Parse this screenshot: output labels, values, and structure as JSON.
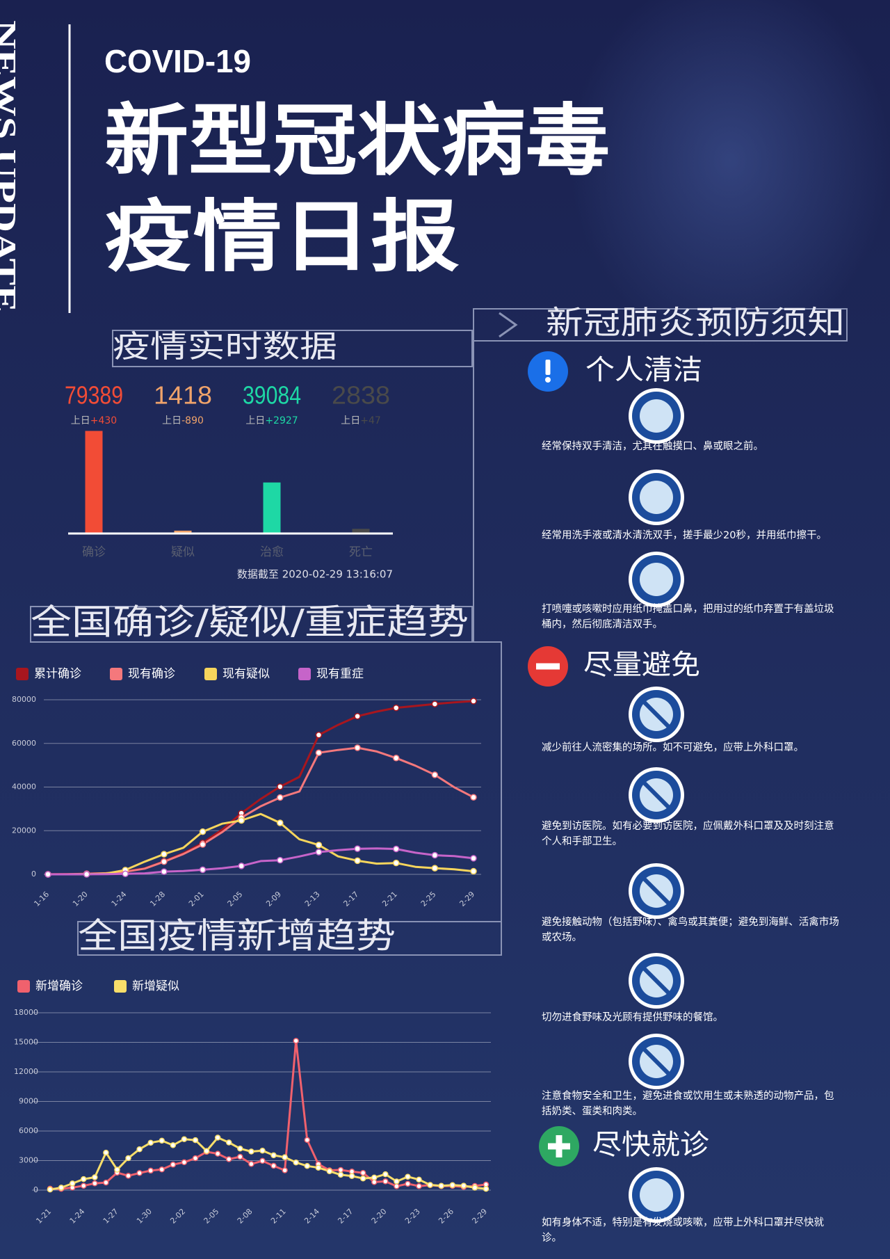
{
  "header": {
    "vertical": "NEWS UPDATE",
    "covid": "COVID-19",
    "title1": "新型冠状病毒",
    "title2": "疫情日报"
  },
  "chart_data": [
    {
      "type": "bar",
      "title": "疫情实时数据",
      "categories": [
        "确诊",
        "疑似",
        "治愈",
        "死亡"
      ],
      "values": [
        79389,
        1418,
        39084,
        2838
      ],
      "colors": [
        "#f24c36",
        "#f0a36a",
        "#1ed8a5",
        "#4a4a4a"
      ],
      "delta_label": "上日",
      "deltas": [
        "+430",
        "-890",
        "+2927",
        "+47"
      ],
      "note": "数据截至 2020-02-29 13:16:07"
    },
    {
      "type": "line",
      "title": "全国确诊/疑似/重症趋势",
      "categories": [
        "1-16",
        null,
        "1-20",
        null,
        "1-24",
        null,
        "1-28",
        null,
        "2-01",
        null,
        "2-05",
        null,
        "2-09",
        null,
        "2-13",
        null,
        "2-17",
        null,
        "2-21",
        null,
        "2-25",
        null,
        "2-29"
      ],
      "ylim": [
        0,
        80000
      ],
      "yticks": [
        0,
        20000,
        40000,
        60000,
        80000
      ],
      "grid": true,
      "series": [
        {
          "name": "累计确诊",
          "color": "#a8161e",
          "values": [
            45,
            121,
            291,
            571,
            1287,
            2744,
            5974,
            9692,
            14380,
            20438,
            28018,
            34546,
            40171,
            44653,
            63851,
            68500,
            72436,
            74576,
            76288,
            77150,
            78064,
            78824,
            79389
          ]
        },
        {
          "name": "现有确诊",
          "color": "#f4787c",
          "values": [
            41,
            100,
            270,
            500,
            1200,
            2600,
            5800,
            9300,
            13700,
            19300,
            26000,
            31200,
            35200,
            38000,
            55700,
            57000,
            58000,
            56300,
            53300,
            49800,
            45600,
            39900,
            35300
          ]
        },
        {
          "name": "现有疑似",
          "color": "#f6d55c",
          "values": [
            0,
            0,
            54,
            393,
            1965,
            5794,
            9239,
            12167,
            19544,
            23214,
            24702,
            27657,
            23589,
            16067,
            13435,
            8228,
            6242,
            4922,
            5206,
            3434,
            2824,
            2308,
            1418
          ]
        },
        {
          "name": "现有重症",
          "color": "#c664c9",
          "values": [
            5,
            10,
            35,
            95,
            237,
            461,
            1239,
            1527,
            2110,
            2788,
            3859,
            6101,
            6484,
            8204,
            10204,
            11053,
            11741,
            11864,
            11633,
            9915,
            8752,
            8346,
            7365
          ]
        }
      ]
    },
    {
      "type": "line",
      "title": "全国疫情新增趋势",
      "categories": [
        "1-21",
        null,
        null,
        "1-24",
        null,
        null,
        "1-27",
        null,
        null,
        "1-30",
        null,
        null,
        "2-02",
        null,
        null,
        "2-05",
        null,
        null,
        "2-08",
        null,
        null,
        "2-11",
        null,
        null,
        "2-14",
        null,
        null,
        "2-17",
        null,
        null,
        "2-20",
        null,
        null,
        "2-23",
        null,
        null,
        "2-26",
        null,
        null,
        "2-29"
      ],
      "ylim": [
        0,
        18000
      ],
      "yticks": [
        0,
        3000,
        6000,
        9000,
        12000,
        15000,
        18000
      ],
      "grid": true,
      "series": [
        {
          "name": "新增确诊",
          "color": "#f0616d",
          "values": [
            149,
            131,
            259,
            444,
            688,
            769,
            1771,
            1459,
            1737,
            1981,
            2099,
            2590,
            2829,
            3235,
            3887,
            3694,
            3143,
            3385,
            2652,
            2973,
            2467,
            2015,
            15152,
            5090,
            2641,
            2009,
            2048,
            1886,
            1749,
            820,
            889,
            397,
            648,
            409,
            508,
            406,
            433,
            327,
            427,
            573
          ]
        },
        {
          "name": "新增疑似",
          "color": "#f8de6a",
          "values": [
            60,
            257,
            680,
            1118,
            1309,
            3806,
            2077,
            3248,
            4148,
            4812,
            5019,
            4562,
            5173,
            5072,
            3971,
            5328,
            4833,
            4214,
            3916,
            4008,
            3536,
            3342,
            2807,
            2450,
            2277,
            1918,
            1563,
            1432,
            1185,
            1277,
            1614,
            882,
            1361,
            1070,
            530,
            439,
            508,
            452,
            248,
            132
          ]
        }
      ]
    }
  ],
  "prevention": {
    "title": "新冠肺炎预防须知",
    "sections": [
      {
        "heading": "个人清洁",
        "items": [
          "经常保持双手清洁，尤其在触摸口、鼻或眼之前。",
          "经常用洗手液或清水清洗双手，搓手最少20秒，并用纸巾擦干。",
          "打喷嚏或咳嗽时应用纸巾掩盖口鼻，把用过的纸巾弃置于有盖垃圾桶内，然后彻底清洁双手。"
        ]
      },
      {
        "heading": "尽量避免",
        "items": [
          "减少前往人流密集的场所。如不可避免，应带上外科口罩。",
          "避免到访医院。如有必要到访医院，应佩戴外科口罩及及时刻注意个人和手部卫生。",
          "避免接触动物（包括野味）、禽鸟或其粪便；避免到海鲜、活禽市场或农场。",
          "切勿进食野味及光顾有提供野味的餐馆。",
          "注意食物安全和卫生，避免进食或饮用生或未熟透的动物产品，包括奶类、蛋类和肉类。"
        ]
      },
      {
        "heading": "尽快就诊",
        "items": [
          "如有身体不适，特别是有发烧或咳嗽，应带上外科口罩并尽快就诊。"
        ]
      }
    ]
  }
}
